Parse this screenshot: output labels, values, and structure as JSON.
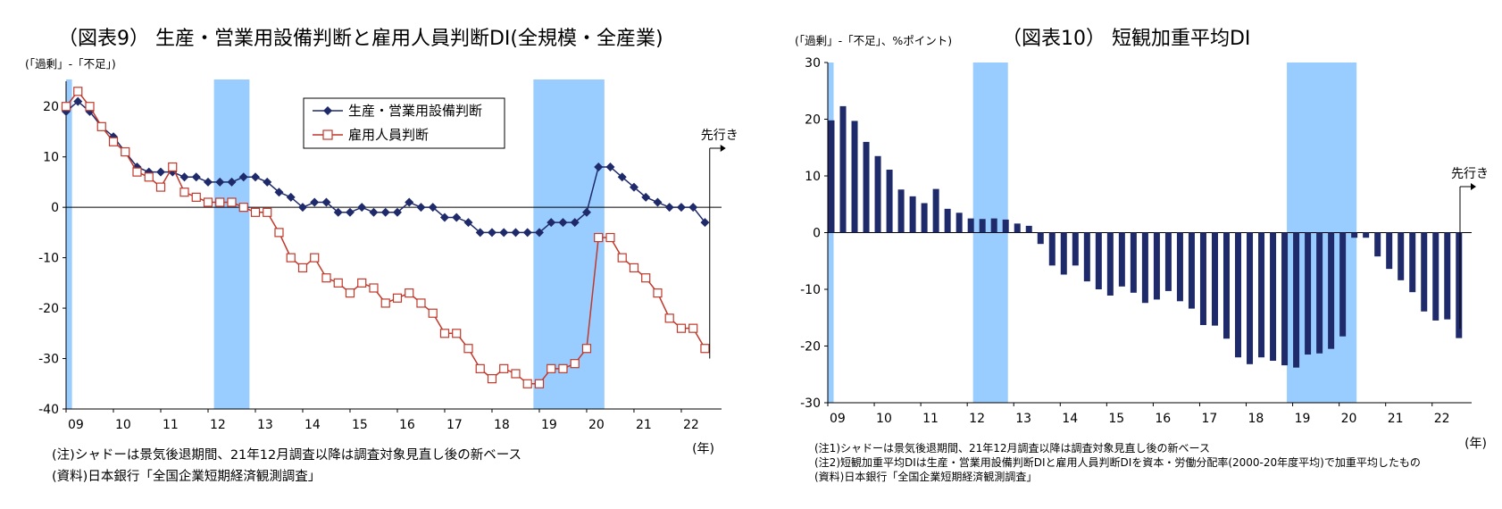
{
  "left": {
    "title": "（図表9） 生産・営業用設備判断と雇用人員判断DI(全規模・全産業)",
    "unit": "(「過剰」-「不足」)",
    "x_unit": "(年)",
    "forecast_label": "先行き",
    "notes": [
      "(注)シャドーは景気後退期間、21年12月調査以降は調査対象見直し後の新ベース",
      "(資料)日本銀行「全国企業短期経済観測調査」"
    ]
  },
  "right": {
    "title": "（図表10） 短観加重平均DI",
    "unit": "(「過剰」-「不足」、%ポイント)",
    "x_unit": "(年)",
    "forecast_label": "先行き",
    "notes": [
      "(注1)シャドーは景気後退期間、21年12月調査以降は調査対象見直し後の新ベース",
      "(注2)短観加重平均DIは生産・営業用設備判断DIと雇用人員判断DIを資本・労働分配率(2000-20年度平均)で加重平均したもの",
      "(資料)日本銀行「全国企業短期経済観測調査」"
    ]
  },
  "chart_data": [
    {
      "type": "line",
      "title": "（図表9） 生産・営業用設備判断と雇用人員判断DI(全規模・全産業)",
      "ylabel": "(「過剰」-「不足」)",
      "xlabel": "(年)",
      "ylim": [
        -40,
        25
      ],
      "yticks": [
        20,
        10,
        0,
        -10,
        -20,
        -30,
        -40
      ],
      "x_tick_labels": [
        "09",
        "10",
        "11",
        "12",
        "13",
        "14",
        "15",
        "16",
        "17",
        "18",
        "19",
        "20",
        "21",
        "22"
      ],
      "x_tick_years": [
        2009,
        2010,
        2011,
        2012,
        2013,
        2014,
        2015,
        2016,
        2017,
        2018,
        2019,
        2020,
        2021,
        2022
      ],
      "xlim": [
        2009,
        2022.85
      ],
      "shade_periods": [
        [
          2009,
          2009.125
        ],
        [
          2012.125,
          2012.875
        ],
        [
          2018.875,
          2020.375
        ]
      ],
      "legend_position": "top-center",
      "forecast_marker_year": 2022.6,
      "x_years": [
        2009,
        2009.25,
        2009.5,
        2009.75,
        2010,
        2010.25,
        2010.5,
        2010.75,
        2011,
        2011.25,
        2011.5,
        2011.75,
        2012,
        2012.25,
        2012.5,
        2012.75,
        2013,
        2013.25,
        2013.5,
        2013.75,
        2014,
        2014.25,
        2014.5,
        2014.75,
        2015,
        2015.25,
        2015.5,
        2015.75,
        2016,
        2016.25,
        2016.5,
        2016.75,
        2017,
        2017.25,
        2017.5,
        2017.75,
        2018,
        2018.25,
        2018.5,
        2018.75,
        2019,
        2019.25,
        2019.5,
        2019.75,
        2020,
        2020.25,
        2020.5,
        2020.75,
        2021,
        2021.25,
        2021.5,
        2021.75,
        2022,
        2022.25,
        2022.5
      ],
      "series": [
        {
          "name": "生産・営業用設備判断",
          "marker": "filled-diamond",
          "color": "#1f2a6b",
          "values": [
            19,
            21,
            19,
            16,
            14,
            11,
            8,
            7,
            7,
            7,
            6,
            6,
            5,
            5,
            5,
            6,
            6,
            5,
            3,
            2,
            0,
            1,
            1,
            -1,
            -1,
            0,
            -1,
            -1,
            -1,
            1,
            0,
            0,
            -2,
            -2,
            -3,
            -5,
            -5,
            -5,
            -5,
            -5,
            -5,
            -3,
            -3,
            -3,
            -1,
            8,
            8,
            6,
            4,
            2,
            1,
            0,
            0,
            0,
            -3
          ]
        },
        {
          "name": "雇用人員判断",
          "marker": "open-square",
          "color": "#c0392b",
          "values": [
            20,
            23,
            20,
            16,
            13,
            11,
            7,
            6,
            4,
            8,
            3,
            2,
            1,
            1,
            1,
            0,
            -1,
            -1,
            -5,
            -10,
            -12,
            -10,
            -14,
            -15,
            -17,
            -15,
            -16,
            -19,
            -18,
            -17,
            -19,
            -21,
            -25,
            -25,
            -28,
            -32,
            -34,
            -32,
            -33,
            -35,
            -35,
            -32,
            -32,
            -31,
            -28,
            -6,
            -6,
            -10,
            -12,
            -14,
            -17,
            -22,
            -24,
            -24,
            -28
          ]
        }
      ]
    },
    {
      "type": "bar",
      "title": "（図表10） 短観加重平均DI",
      "ylabel": "(「過剰」-「不足」、%ポイント)",
      "xlabel": "(年)",
      "ylim": [
        -30,
        30
      ],
      "yticks": [
        30,
        20,
        10,
        0,
        -10,
        -20,
        -30
      ],
      "x_tick_labels": [
        "09",
        "10",
        "11",
        "12",
        "13",
        "14",
        "15",
        "16",
        "17",
        "18",
        "19",
        "20",
        "21",
        "22"
      ],
      "x_tick_years": [
        2009,
        2010,
        2011,
        2012,
        2013,
        2014,
        2015,
        2016,
        2017,
        2018,
        2019,
        2020,
        2021,
        2022
      ],
      "xlim": [
        2009,
        2022.85
      ],
      "shade_periods": [
        [
          2009,
          2009.125
        ],
        [
          2012.125,
          2012.875
        ],
        [
          2018.875,
          2020.375
        ]
      ],
      "forecast_marker_year": 2022.6,
      "x_years": [
        2009,
        2009.25,
        2009.5,
        2009.75,
        2010,
        2010.25,
        2010.5,
        2010.75,
        2011,
        2011.25,
        2011.5,
        2011.75,
        2012,
        2012.25,
        2012.5,
        2012.75,
        2013,
        2013.25,
        2013.5,
        2013.75,
        2014,
        2014.25,
        2014.5,
        2014.75,
        2015,
        2015.25,
        2015.5,
        2015.75,
        2016,
        2016.25,
        2016.5,
        2016.75,
        2017,
        2017.25,
        2017.5,
        2017.75,
        2018,
        2018.25,
        2018.5,
        2018.75,
        2019,
        2019.25,
        2019.5,
        2019.75,
        2020,
        2020.25,
        2020.5,
        2020.75,
        2021,
        2021.25,
        2021.5,
        2021.75,
        2022,
        2022.25,
        2022.5
      ],
      "series": [
        {
          "color": "#1f2a6b",
          "values": [
            19.8,
            22.3,
            19.7,
            16,
            13.5,
            11.1,
            7.6,
            6.4,
            5.2,
            7.7,
            4.2,
            3.5,
            2.5,
            2.4,
            2.5,
            2.3,
            1.6,
            1.2,
            -2,
            -5.8,
            -7.4,
            -5.8,
            -8.6,
            -10,
            -11.1,
            -9.5,
            -10.6,
            -12.4,
            -11.8,
            -10.3,
            -12.1,
            -13.4,
            -16.3,
            -16.4,
            -18.7,
            -22,
            -23.2,
            -22,
            -22.6,
            -23.4,
            -23.8,
            -21.5,
            -21.3,
            -20.5,
            -18.3,
            -0.9,
            -0.9,
            -4.2,
            -6.4,
            -8.4,
            -10.5,
            -13.9,
            -15.5,
            -15.3,
            -18.6
          ]
        }
      ]
    }
  ]
}
